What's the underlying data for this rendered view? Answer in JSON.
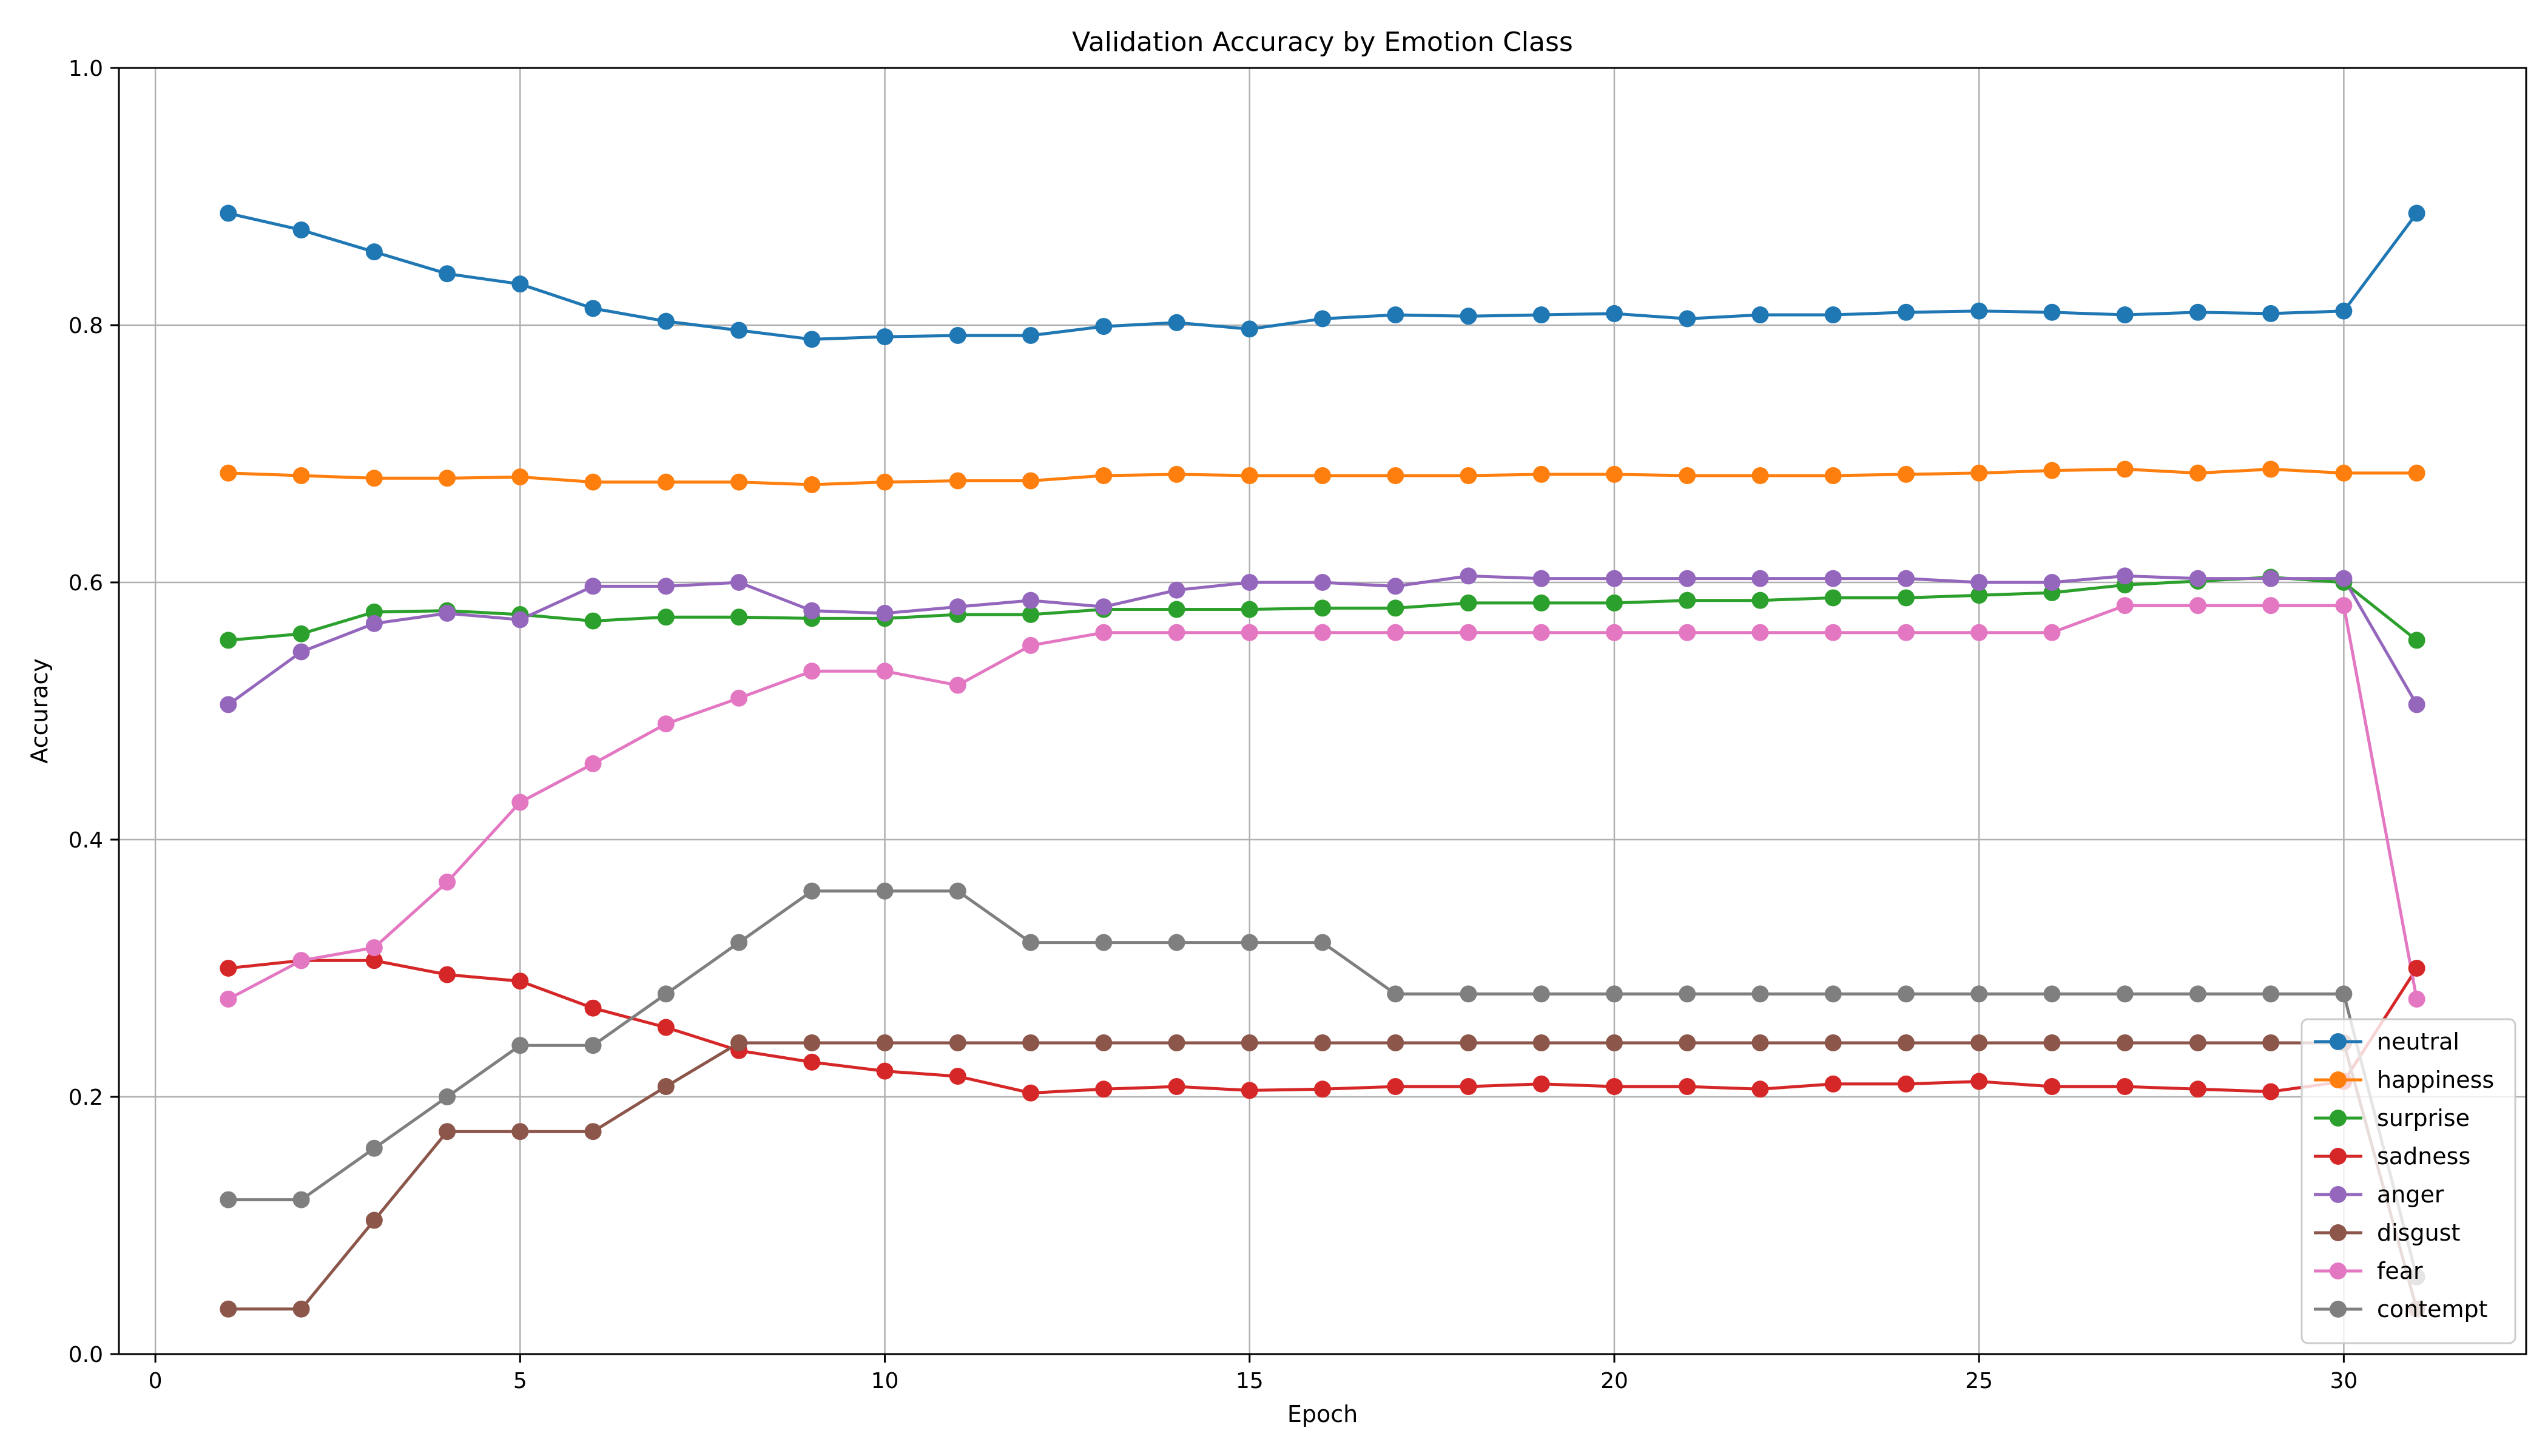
{
  "chart_data": {
    "type": "line",
    "title": "Validation Accuracy by Emotion Class",
    "xlabel": "Epoch",
    "ylabel": "Accuracy",
    "xlim": [
      -0.5,
      32.5
    ],
    "ylim": [
      0.0,
      1.0
    ],
    "xticks": [
      0,
      5,
      10,
      15,
      20,
      25,
      30
    ],
    "yticks": [
      0.0,
      0.2,
      0.4,
      0.6,
      0.8,
      1.0
    ],
    "xtick_labels": [
      "0",
      "5",
      "10",
      "15",
      "20",
      "25",
      "30"
    ],
    "ytick_labels": [
      "0.0",
      "0.2",
      "0.4",
      "0.6",
      "0.8",
      "1.0"
    ],
    "grid": true,
    "legend_position": "lower-right",
    "x": [
      1,
      2,
      3,
      4,
      5,
      6,
      7,
      8,
      9,
      10,
      11,
      12,
      13,
      14,
      15,
      16,
      17,
      18,
      19,
      20,
      21,
      22,
      23,
      24,
      25,
      26,
      27,
      28,
      29,
      30,
      31
    ],
    "series": [
      {
        "name": "neutral",
        "color": "#1f77b4",
        "values": [
          0.887,
          0.874,
          0.857,
          0.84,
          0.832,
          0.813,
          0.803,
          0.796,
          0.789,
          0.791,
          0.792,
          0.792,
          0.799,
          0.802,
          0.797,
          0.805,
          0.808,
          0.807,
          0.808,
          0.809,
          0.805,
          0.808,
          0.808,
          0.81,
          0.811,
          0.81,
          0.808,
          0.81,
          0.809,
          0.811,
          0.887
        ]
      },
      {
        "name": "happiness",
        "color": "#ff7f0e",
        "values": [
          0.685,
          0.683,
          0.681,
          0.681,
          0.682,
          0.678,
          0.678,
          0.678,
          0.676,
          0.678,
          0.679,
          0.679,
          0.683,
          0.684,
          0.683,
          0.683,
          0.683,
          0.683,
          0.684,
          0.684,
          0.683,
          0.683,
          0.683,
          0.684,
          0.685,
          0.687,
          0.688,
          0.685,
          0.688,
          0.685,
          0.685
        ]
      },
      {
        "name": "surprise",
        "color": "#2ca02c",
        "values": [
          0.555,
          0.56,
          0.577,
          0.578,
          0.575,
          0.57,
          0.573,
          0.573,
          0.572,
          0.572,
          0.575,
          0.575,
          0.579,
          0.579,
          0.579,
          0.58,
          0.58,
          0.584,
          0.584,
          0.584,
          0.586,
          0.586,
          0.588,
          0.588,
          0.59,
          0.592,
          0.598,
          0.601,
          0.604,
          0.6,
          0.555
        ]
      },
      {
        "name": "sadness",
        "color": "#d62728",
        "values": [
          0.3,
          0.306,
          0.306,
          0.295,
          0.29,
          0.269,
          0.254,
          0.236,
          0.227,
          0.22,
          0.216,
          0.203,
          0.206,
          0.208,
          0.205,
          0.206,
          0.208,
          0.208,
          0.21,
          0.208,
          0.208,
          0.206,
          0.21,
          0.21,
          0.212,
          0.208,
          0.208,
          0.206,
          0.204,
          0.212,
          0.3
        ]
      },
      {
        "name": "anger",
        "color": "#9467bd",
        "values": [
          0.505,
          0.546,
          0.568,
          0.576,
          0.571,
          0.597,
          0.597,
          0.6,
          0.578,
          0.576,
          0.581,
          0.586,
          0.581,
          0.594,
          0.6,
          0.6,
          0.597,
          0.605,
          0.603,
          0.603,
          0.603,
          0.603,
          0.603,
          0.603,
          0.6,
          0.6,
          0.605,
          0.603,
          0.603,
          0.603,
          0.505
        ]
      },
      {
        "name": "disgust",
        "color": "#8c564b",
        "values": [
          0.035,
          0.035,
          0.104,
          0.173,
          0.173,
          0.173,
          0.208,
          0.242,
          0.242,
          0.242,
          0.242,
          0.242,
          0.242,
          0.242,
          0.242,
          0.242,
          0.242,
          0.242,
          0.242,
          0.242,
          0.242,
          0.242,
          0.242,
          0.242,
          0.242,
          0.242,
          0.242,
          0.242,
          0.242,
          0.242,
          0.035
        ]
      },
      {
        "name": "fear",
        "color": "#e377c2",
        "values": [
          0.276,
          0.306,
          0.316,
          0.367,
          0.429,
          0.459,
          0.49,
          0.51,
          0.531,
          0.531,
          0.52,
          0.551,
          0.561,
          0.561,
          0.561,
          0.561,
          0.561,
          0.561,
          0.561,
          0.561,
          0.561,
          0.561,
          0.561,
          0.561,
          0.561,
          0.561,
          0.582,
          0.582,
          0.582,
          0.582,
          0.276
        ]
      },
      {
        "name": "contempt",
        "color": "#7f7f7f",
        "values": [
          0.12,
          0.12,
          0.16,
          0.2,
          0.24,
          0.24,
          0.28,
          0.32,
          0.36,
          0.36,
          0.36,
          0.32,
          0.32,
          0.32,
          0.32,
          0.32,
          0.28,
          0.28,
          0.28,
          0.28,
          0.28,
          0.28,
          0.28,
          0.28,
          0.28,
          0.28,
          0.28,
          0.28,
          0.28,
          0.28,
          0.06
        ]
      }
    ]
  }
}
